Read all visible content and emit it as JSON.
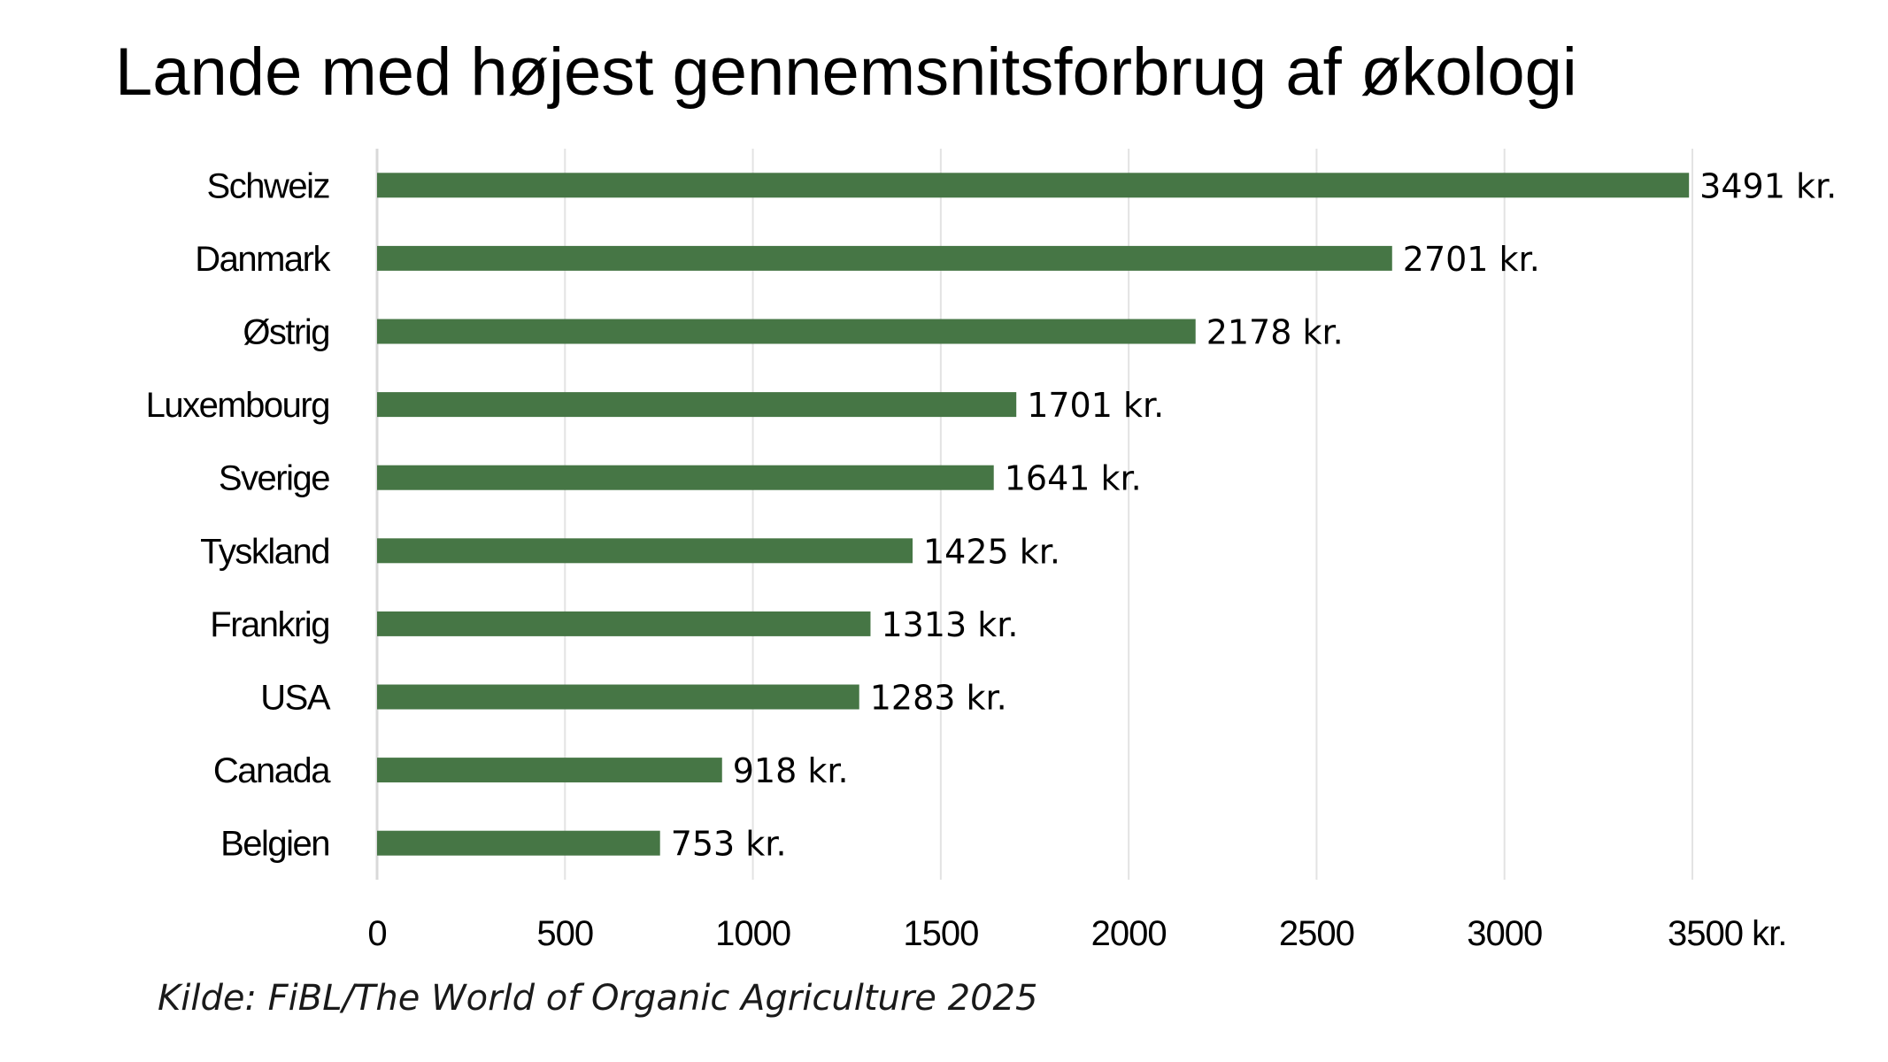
{
  "chart_data": {
    "type": "bar",
    "orientation": "horizontal",
    "title": "Lande med højest gennemsnitsforbrug af økologi",
    "source": "Kilde: FiBL/The World of Organic Agriculture 2025",
    "categories": [
      "Schweiz",
      "Danmark",
      "Østrig",
      "Luxembourg",
      "Sverige",
      "Tyskland",
      "Frankrig",
      "USA",
      "Canada",
      "Belgien"
    ],
    "values": [
      3491,
      2701,
      2178,
      1701,
      1641,
      1425,
      1313,
      1283,
      918,
      753
    ],
    "data_labels": [
      "3491 kr.",
      "2701 kr.",
      "2178 kr.",
      "1701 kr.",
      "1641 kr.",
      "1425 kr.",
      "1313 kr.",
      "1283 kr.",
      "918 kr.",
      "753 kr."
    ],
    "x_ticks": [
      "0",
      "500",
      "1000",
      "1500",
      "2000",
      "2500",
      "3000",
      "3500 kr."
    ],
    "xlim": [
      0,
      3500
    ],
    "grid": true,
    "bar_color": "#467645"
  }
}
